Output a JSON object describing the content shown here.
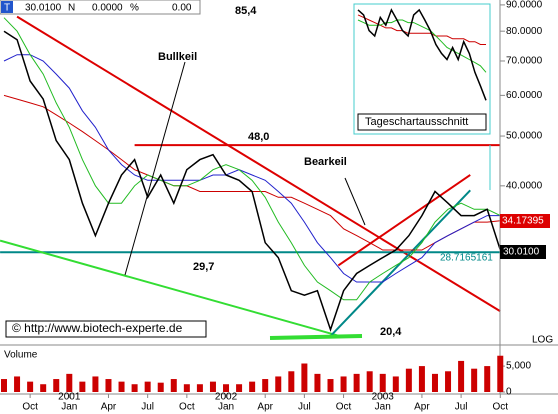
{
  "header": {
    "symbol": "T",
    "last": "30.0100",
    "n": "N",
    "change": "0.0000",
    "pct": "%",
    "pct_value": "0.00"
  },
  "annotations": {
    "high": "85,4",
    "resistance": "48,0",
    "support": "29,7",
    "low": "20,4",
    "bull": "Bullkeil",
    "bear": "Bearkeil",
    "copyright": "© http://www.biotech-experte.de",
    "scale": "LOG",
    "last_price": "30.0100",
    "ma_price": "34.17395",
    "line_price": "28.7165161"
  },
  "chart_data": [
    {
      "type": "line",
      "log": true,
      "categories": [
        null,
        null,
        "Oct",
        null,
        null,
        "Jan",
        null,
        null,
        "Apr",
        null,
        null,
        "Jul",
        null,
        null,
        "Oct",
        null,
        null,
        "Jan",
        null,
        null,
        "Apr",
        null,
        null,
        "Jul",
        null,
        null,
        "Oct",
        null,
        null,
        "Jan",
        null,
        null,
        "Apr",
        null,
        null,
        "Jul",
        null,
        null,
        "Oct"
      ],
      "years": [
        null,
        null,
        null,
        null,
        null,
        "2001",
        null,
        null,
        null,
        null,
        null,
        null,
        null,
        null,
        null,
        null,
        null,
        "2002",
        null,
        null,
        null,
        null,
        null,
        null,
        null,
        null,
        null,
        null,
        null,
        "2003",
        null,
        null,
        null,
        null,
        null,
        null,
        null,
        null,
        null
      ],
      "ylim": [
        19.6,
        92
      ],
      "yticks": [
        {
          "value": 90,
          "label": "90.0000"
        },
        {
          "value": 80,
          "label": "80.0000"
        },
        {
          "value": 70,
          "label": "70.0000"
        },
        {
          "value": 60,
          "label": "60.0000"
        },
        {
          "value": 50,
          "label": "50.0000"
        },
        {
          "value": 40,
          "label": "40.0000"
        }
      ],
      "series": [
        {
          "color": "#cc0000",
          "values": [
            60,
            59,
            58,
            57,
            55,
            53,
            51,
            49,
            47,
            45,
            43,
            42,
            41,
            40,
            40,
            39,
            39,
            39,
            39,
            39,
            39,
            38,
            38,
            37,
            36,
            35,
            33,
            32,
            31,
            30,
            30,
            30,
            30,
            31,
            32,
            33,
            34,
            34,
            34.2
          ]
        },
        {
          "color": "#2222cc",
          "values": [
            70,
            72,
            72,
            70,
            66,
            62,
            56,
            52,
            47,
            44,
            42,
            41,
            41,
            41,
            41,
            41,
            42,
            42,
            43,
            42,
            41,
            39,
            37,
            34,
            31,
            29,
            27,
            26,
            26,
            26,
            27,
            28,
            29,
            31,
            32,
            33,
            34,
            35,
            35
          ]
        },
        {
          "color": "#22bb22",
          "values": [
            85,
            80,
            72,
            66,
            58,
            52,
            45,
            40,
            37,
            37,
            40,
            42,
            41,
            40,
            40,
            41,
            43,
            44,
            43,
            41,
            38,
            34,
            31,
            28,
            26,
            25,
            24,
            24,
            26,
            27,
            28,
            29,
            31,
            34,
            36,
            37,
            36,
            36,
            35
          ]
        },
        {
          "color": "#000000",
          "values": [
            80,
            77,
            64,
            59,
            49,
            45,
            37,
            32,
            37,
            42,
            45,
            38,
            42,
            37,
            43,
            45,
            46,
            42,
            41,
            39,
            31,
            29,
            25,
            24.5,
            25,
            21,
            25,
            27,
            28,
            29,
            30,
            32,
            35,
            39,
            37,
            35,
            35,
            36,
            30.01
          ]
        }
      ],
      "lines": [
        {
          "color": "#dd0000",
          "start": [
            1,
            85.4
          ],
          "end": [
            38,
            22.8
          ]
        },
        {
          "color": "#dd0000",
          "start": [
            10,
            48
          ],
          "end": [
            38,
            48
          ]
        },
        {
          "color": "#008888",
          "start": [
            -0.3,
            29.7
          ],
          "end": [
            38,
            29.7
          ]
        },
        {
          "color": "#33dd33",
          "start": [
            -0.3,
            31.3
          ],
          "end": [
            25.7,
            20.4
          ]
        },
        {
          "color": "#dd0000",
          "start": [
            25.6,
            28
          ],
          "end": [
            35.7,
            42
          ]
        },
        {
          "color": "#008888",
          "start": [
            25,
            20.4
          ],
          "end": [
            35.7,
            39.2
          ]
        }
      ]
    },
    {
      "type": "bar",
      "label": "Volume",
      "color": "#cc0000",
      "values": [
        2500,
        3000,
        2000,
        1500,
        2500,
        3500,
        2000,
        3000,
        2500,
        2000,
        1500,
        2000,
        1800,
        2500,
        1500,
        1500,
        2000,
        1500,
        1500,
        2000,
        2500,
        3000,
        4000,
        5500,
        3500,
        2500,
        3000,
        3500,
        4000,
        3500,
        3000,
        4500,
        5000,
        3500,
        4000,
        6000,
        4500,
        5000,
        7000
      ],
      "ylim": [
        0,
        8300
      ],
      "yticks": [
        0,
        {
          "value": 5000,
          "label": "5,000"
        }
      ]
    },
    {
      "type": "line",
      "log": true,
      "caption": "Tageschartausschnitt",
      "ylim": [
        54.2,
        92.1
      ],
      "series": [
        {
          "color": "#cc0000",
          "values": [
            86,
            85,
            84,
            83,
            82,
            81,
            81,
            80,
            80,
            79,
            79,
            79,
            79,
            79,
            78,
            78,
            78,
            77,
            77,
            77,
            76,
            76,
            75,
            75
          ]
        },
        {
          "color": "#22bb22",
          "values": [
            84,
            83,
            82,
            82,
            82,
            83,
            83,
            84,
            84,
            83,
            83,
            82,
            81,
            80,
            78,
            76,
            74,
            73,
            72,
            71,
            70,
            69,
            68,
            66
          ]
        },
        {
          "color": "#000000",
          "values": [
            88,
            86,
            80,
            78,
            85,
            82,
            88,
            84,
            80,
            78,
            86,
            88,
            84,
            80,
            75,
            72,
            70,
            74,
            70,
            76,
            72,
            66,
            62,
            58
          ]
        }
      ]
    }
  ]
}
